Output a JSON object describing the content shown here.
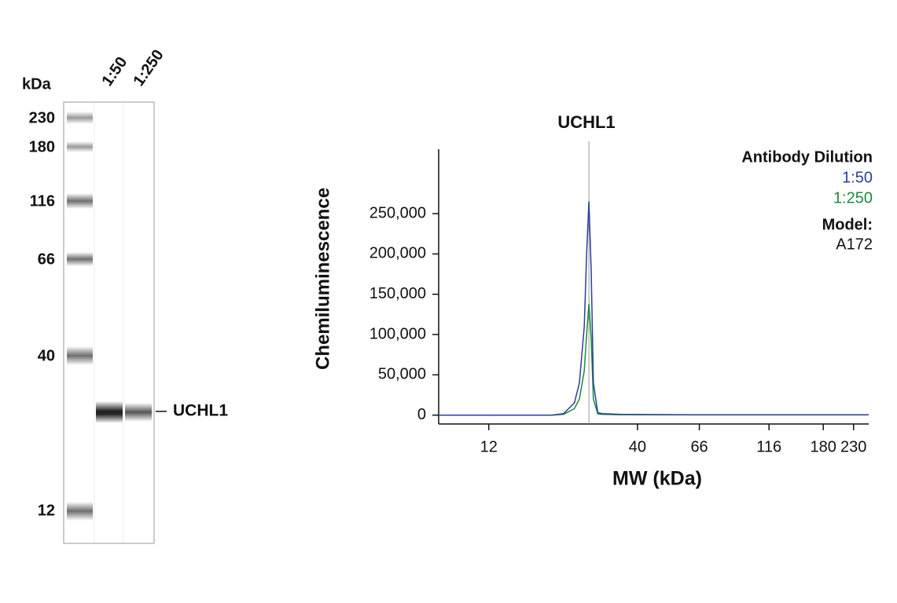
{
  "blot": {
    "unit_label": "kDa",
    "lanes": [
      "1:50",
      "1:250"
    ],
    "markers": [
      230,
      180,
      116,
      66,
      40,
      12
    ],
    "band_label": "UCHL1"
  },
  "chart_data": {
    "type": "line",
    "title": "UCHL1",
    "ylabel": "Chemiluminescence",
    "xlabel": "MW (kDa)",
    "xscale": "log",
    "xlim": [
      8,
      260
    ],
    "xticks": [
      12,
      40,
      66,
      116,
      180,
      230
    ],
    "ylim": [
      -11000,
      330000
    ],
    "yticks": [
      0,
      {
        "value": 50000,
        "label": "50,000"
      },
      {
        "value": 100000,
        "label": "100,000"
      },
      {
        "value": 150000,
        "label": "150,000"
      },
      {
        "value": 200000,
        "label": "200,000"
      },
      {
        "value": 250000,
        "label": "250,000"
      }
    ],
    "legend_title": "Antibody Dilution",
    "model_label": "Model:",
    "model": "A172",
    "series": [
      {
        "name": "1:50",
        "color": "#2b3f9c",
        "x": [
          8,
          20,
          22,
          24,
          25,
          26,
          26.5,
          27,
          27.5,
          28,
          29,
          30,
          35,
          60,
          260
        ],
        "values": [
          0,
          0,
          2000,
          15000,
          40000,
          110000,
          200000,
          265000,
          180000,
          40000,
          3000,
          2000,
          1000,
          500,
          500
        ]
      },
      {
        "name": "1:250",
        "color": "#1e8a3e",
        "x": [
          8,
          20,
          22,
          24,
          25,
          26,
          26.5,
          27,
          27.5,
          28,
          29,
          30,
          35,
          60,
          260
        ],
        "values": [
          0,
          0,
          1000,
          8000,
          20000,
          55000,
          100000,
          138000,
          95000,
          20000,
          1500,
          1000,
          500,
          300,
          300
        ]
      }
    ]
  }
}
